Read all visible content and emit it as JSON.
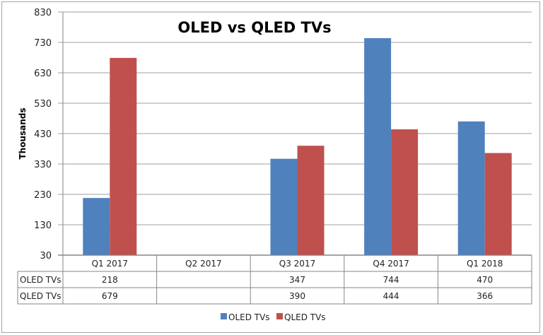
{
  "chart_data": {
    "type": "bar",
    "title": "OLED vs QLED TVs",
    "xlabel": "",
    "ylabel": "Thousands",
    "ylim": [
      30,
      830
    ],
    "yticks": [
      "830",
      "730",
      "630",
      "530",
      "430",
      "330",
      "230",
      "130",
      "30"
    ],
    "ytick_values": [
      830,
      730,
      630,
      530,
      430,
      330,
      230,
      130,
      30
    ],
    "grid": true,
    "legend_position": "bottom",
    "categories": [
      "Q1 2017",
      "Q2 2017",
      "Q3 2017",
      "Q4 2017",
      "Q1 2018"
    ],
    "series": [
      {
        "name": "OLED TVs",
        "color": "#4f81bd",
        "values": [
          218,
          null,
          347,
          744,
          470
        ],
        "labels": [
          "218",
          "",
          "347",
          "744",
          "470"
        ]
      },
      {
        "name": "QLED TVs",
        "color": "#c0504d",
        "values": [
          679,
          null,
          390,
          444,
          366
        ],
        "labels": [
          "679",
          "",
          "390",
          "444",
          "366"
        ]
      }
    ],
    "data_table": true
  }
}
